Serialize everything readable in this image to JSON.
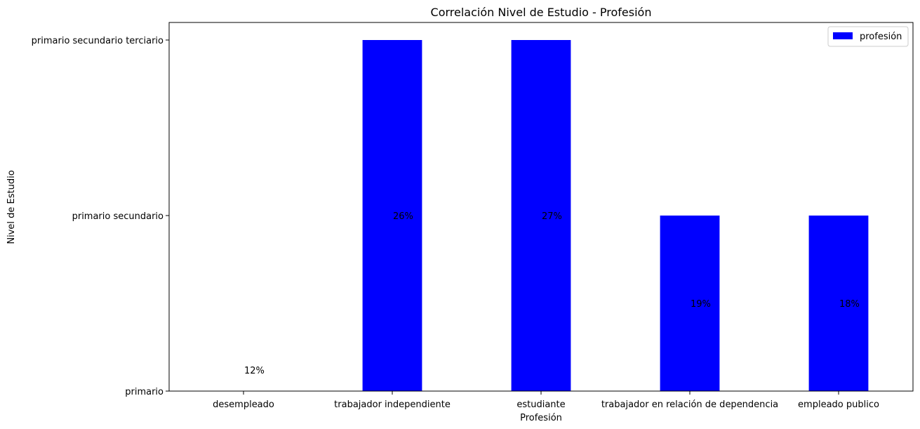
{
  "chart_data": {
    "type": "bar",
    "title": "Correlación Nivel de Estudio - Profesión",
    "xlabel": "Profesión",
    "ylabel": "Nivel de Estudio",
    "categories": [
      "desempleado",
      "trabajador independiente",
      "estudiante",
      "trabajador en relación de dependencia",
      "empleado publico"
    ],
    "y_levels": [
      "primario",
      "primario secundario",
      "primario secundario terciario"
    ],
    "series": [
      {
        "name": "profesión",
        "color": "#0000ff",
        "values": [
          0,
          2,
          2,
          1,
          1
        ]
      }
    ],
    "annotations": [
      {
        "text": "12%",
        "x": "desempleado",
        "y": 0.12
      },
      {
        "text": "26%",
        "x": "trabajador independiente",
        "y": 1.0
      },
      {
        "text": "27%",
        "x": "estudiante",
        "y": 1.0
      },
      {
        "text": "19%",
        "x": "trabajador en relación de dependencia",
        "y": 0.5
      },
      {
        "text": "18%",
        "x": "empleado publico",
        "y": 0.5
      }
    ],
    "ylim": [
      0,
      2.1
    ],
    "grid": false,
    "legend": "top-right"
  }
}
